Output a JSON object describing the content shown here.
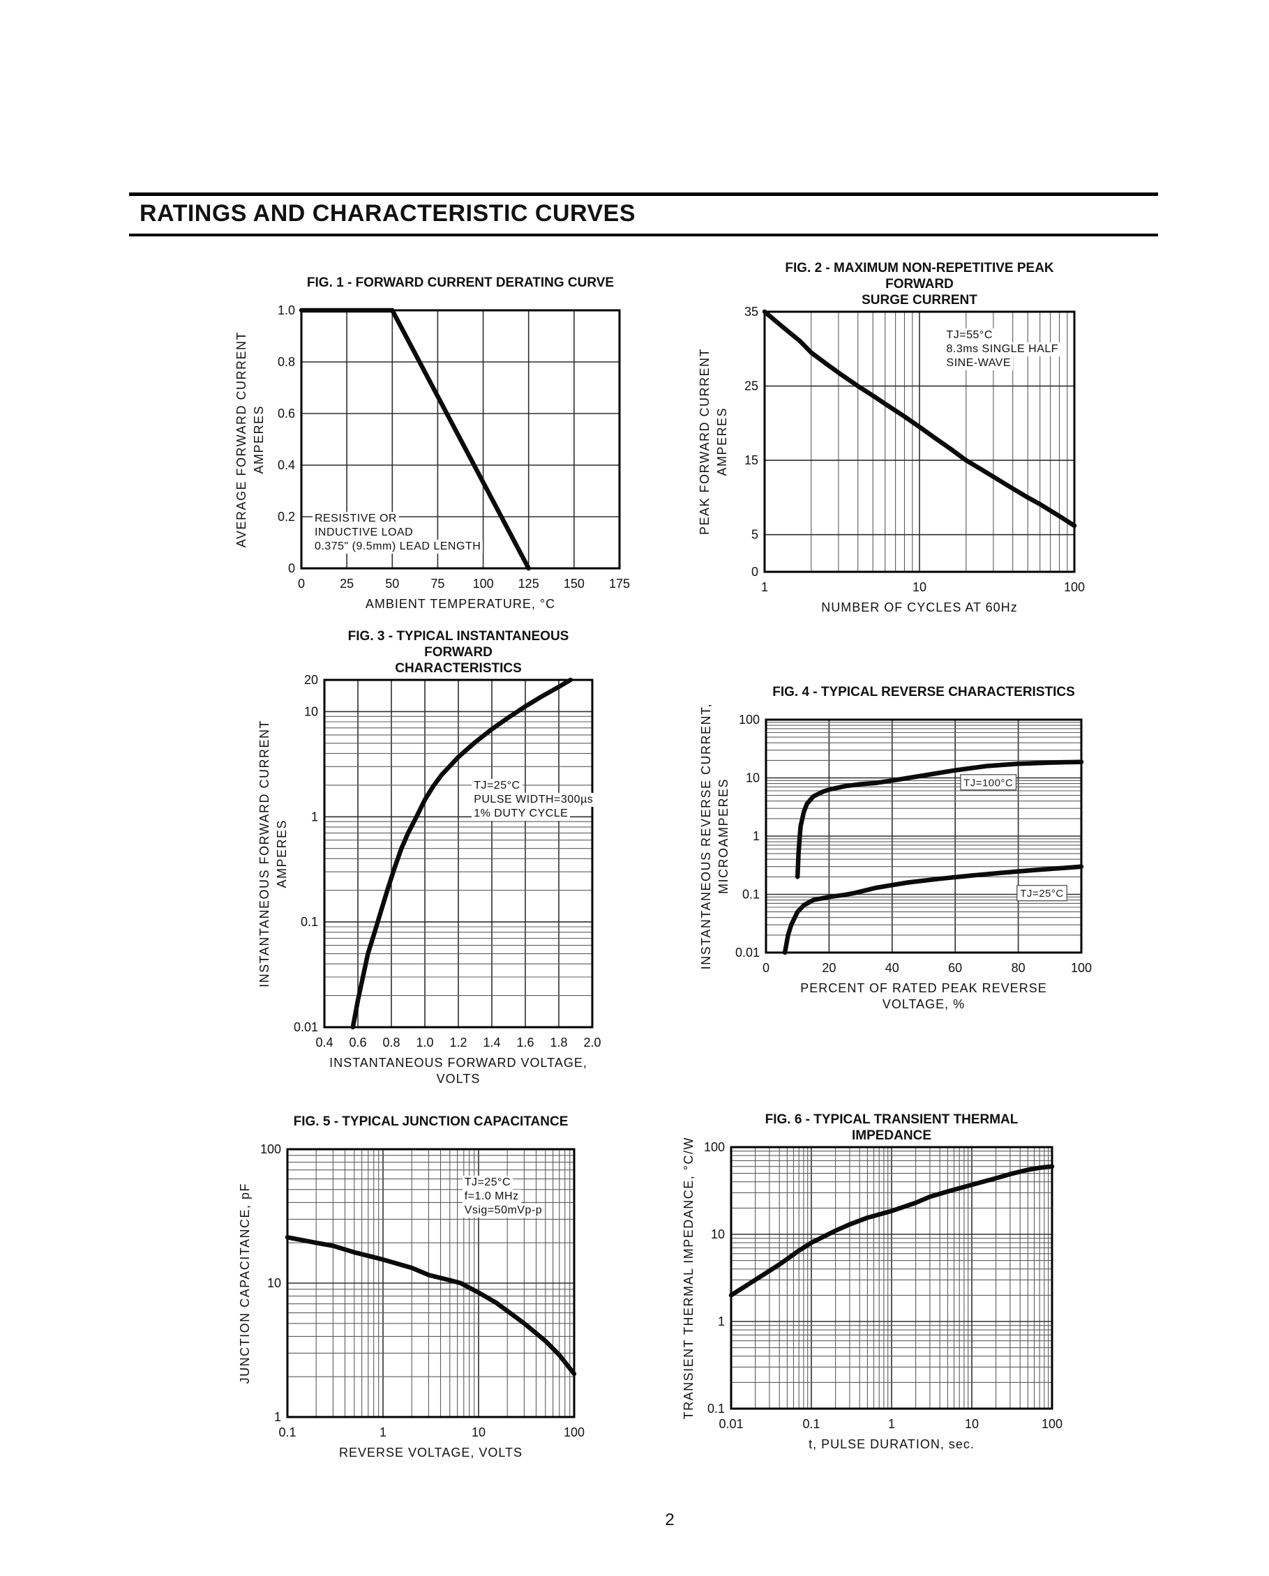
{
  "page": {
    "header_title": "RATINGS AND CHARACTERISTIC CURVES",
    "page_number": "2"
  },
  "chart_data": [
    {
      "id": "fig1",
      "type": "line",
      "title_lines": [
        "FIG. 1 - FORWARD CURRENT DERATING CURVE"
      ],
      "x": {
        "scale": "linear",
        "min": 0,
        "max": 175,
        "ticks": [
          {
            "v": 0,
            "t": "0"
          },
          {
            "v": 25,
            "t": "25"
          },
          {
            "v": 50,
            "t": "50"
          },
          {
            "v": 75,
            "t": "75"
          },
          {
            "v": 100,
            "t": "100"
          },
          {
            "v": 125,
            "t": "125"
          },
          {
            "v": 150,
            "t": "150"
          },
          {
            "v": 175,
            "t": "175"
          }
        ],
        "label_lines": [
          "AMBIENT TEMPERATURE, °C"
        ]
      },
      "y": {
        "scale": "linear",
        "min": 0,
        "max": 1.0,
        "ticks": [
          {
            "v": 0,
            "t": "0"
          },
          {
            "v": 0.2,
            "t": "0.2"
          },
          {
            "v": 0.4,
            "t": "0.4"
          },
          {
            "v": 0.6,
            "t": "0.6"
          },
          {
            "v": 0.8,
            "t": "0.8"
          },
          {
            "v": 1.0,
            "t": "1.0"
          }
        ],
        "label_lines": [
          "AVERAGE FORWARD CURRENT",
          "AMPERES"
        ]
      },
      "note": {
        "lines": [
          "RESISTIVE OR",
          "INDUCTIVE LOAD",
          "0.375\" (9.5mm) LEAD LENGTH"
        ],
        "pos": [
          0.035,
          0.78
        ]
      },
      "series": [
        {
          "name": "forward current derating",
          "points": [
            [
              0,
              1
            ],
            [
              50,
              1
            ],
            [
              125,
              0
            ]
          ]
        }
      ],
      "curve_labels": []
    },
    {
      "id": "fig2",
      "type": "line",
      "title_lines": [
        "FIG. 2 - MAXIMUM NON-REPETITIVE PEAK FORWARD",
        "SURGE CURRENT"
      ],
      "x": {
        "scale": "log",
        "min": 1,
        "max": 100,
        "ticks": [
          {
            "v": 1,
            "t": "1"
          },
          {
            "v": 10,
            "t": "10"
          },
          {
            "v": 100,
            "t": "100"
          }
        ],
        "label_lines": [
          "NUMBER OF CYCLES AT 60Hz"
        ]
      },
      "y": {
        "scale": "linear",
        "min": 0,
        "max": 35,
        "ticks": [
          {
            "v": 0,
            "t": "0"
          },
          {
            "v": 5,
            "t": "5"
          },
          {
            "v": 15,
            "t": "15"
          },
          {
            "v": 25,
            "t": "25"
          },
          {
            "v": 35,
            "t": "35"
          }
        ],
        "label_lines": [
          "PEAK FORWARD CURRENT",
          "AMPERES"
        ]
      },
      "note": {
        "lines": [
          "TJ=55°C",
          "8.3ms SINGLE HALF",
          "SINE-WAVE"
        ],
        "pos": [
          0.58,
          0.065
        ]
      },
      "series": [
        {
          "name": "peak forward surge current",
          "points": [
            [
              1,
              35
            ],
            [
              1.3,
              33
            ],
            [
              1.7,
              31
            ],
            [
              2,
              29.5
            ],
            [
              2.5,
              28
            ],
            [
              3,
              26.8
            ],
            [
              4,
              25
            ],
            [
              5,
              23.7
            ],
            [
              6,
              22.6
            ],
            [
              8,
              20.9
            ],
            [
              10,
              19.5
            ],
            [
              13,
              17.8
            ],
            [
              16,
              16.5
            ],
            [
              20,
              15
            ],
            [
              25,
              13.8
            ],
            [
              30,
              12.8
            ],
            [
              40,
              11.2
            ],
            [
              50,
              10
            ],
            [
              60,
              9.1
            ],
            [
              80,
              7.5
            ],
            [
              100,
              6.2
            ]
          ]
        }
      ],
      "curve_labels": []
    },
    {
      "id": "fig3",
      "type": "line",
      "title_lines": [
        "FIG. 3 - TYPICAL INSTANTANEOUS FORWARD",
        "CHARACTERISTICS"
      ],
      "x": {
        "scale": "linear",
        "min": 0.4,
        "max": 2.0,
        "ticks": [
          {
            "v": 0.4,
            "t": "0.4"
          },
          {
            "v": 0.6,
            "t": "0.6"
          },
          {
            "v": 0.8,
            "t": "0.8"
          },
          {
            "v": 1.0,
            "t": "1.0"
          },
          {
            "v": 1.2,
            "t": "1.2"
          },
          {
            "v": 1.4,
            "t": "1.4"
          },
          {
            "v": 1.6,
            "t": "1.6"
          },
          {
            "v": 1.8,
            "t": "1.8"
          },
          {
            "v": 2.0,
            "t": "2.0"
          }
        ],
        "label_lines": [
          "INSTANTANEOUS FORWARD VOLTAGE,",
          "VOLTS"
        ]
      },
      "y": {
        "scale": "log",
        "min": 0.01,
        "max": 20,
        "ticks": [
          {
            "v": 20,
            "t": "20"
          },
          {
            "v": 10,
            "t": "10"
          },
          {
            "v": 1,
            "t": "1"
          },
          {
            "v": 0.1,
            "t": "0.1"
          },
          {
            "v": 0.01,
            "t": "0.01"
          }
        ],
        "label_lines": [
          "INSTANTANEOUS FORWARD CURRENT",
          "AMPERES"
        ]
      },
      "note": {
        "lines": [
          "TJ=25°C",
          "PULSE WIDTH=300µs",
          "1% DUTY CYCLE"
        ],
        "pos": [
          0.55,
          0.285
        ]
      },
      "series": [
        {
          "name": "instantaneous forward characteristics",
          "points": [
            [
              0.57,
              0.01
            ],
            [
              0.6,
              0.018
            ],
            [
              0.63,
              0.03
            ],
            [
              0.66,
              0.05
            ],
            [
              0.7,
              0.08
            ],
            [
              0.74,
              0.13
            ],
            [
              0.78,
              0.21
            ],
            [
              0.82,
              0.33
            ],
            [
              0.86,
              0.5
            ],
            [
              0.9,
              0.7
            ],
            [
              0.95,
              1.0
            ],
            [
              1.0,
              1.45
            ],
            [
              1.05,
              1.95
            ],
            [
              1.1,
              2.5
            ],
            [
              1.2,
              3.7
            ],
            [
              1.3,
              5.1
            ],
            [
              1.4,
              6.8
            ],
            [
              1.5,
              8.8
            ],
            [
              1.6,
              11.2
            ],
            [
              1.7,
              14
            ],
            [
              1.8,
              17.2
            ],
            [
              1.87,
              20
            ]
          ]
        }
      ],
      "curve_labels": []
    },
    {
      "id": "fig4",
      "type": "line",
      "title_lines": [
        "FIG. 4 - TYPICAL REVERSE CHARACTERISTICS"
      ],
      "x": {
        "scale": "linear",
        "min": 0,
        "max": 100,
        "ticks": [
          {
            "v": 0,
            "t": "0"
          },
          {
            "v": 20,
            "t": "20"
          },
          {
            "v": 40,
            "t": "40"
          },
          {
            "v": 60,
            "t": "60"
          },
          {
            "v": 80,
            "t": "80"
          },
          {
            "v": 100,
            "t": "100"
          }
        ],
        "label_lines": [
          "PERCENT OF RATED PEAK REVERSE",
          "VOLTAGE, %"
        ]
      },
      "y": {
        "scale": "log",
        "min": 0.01,
        "max": 100,
        "ticks": [
          {
            "v": 100,
            "t": "100"
          },
          {
            "v": 10,
            "t": "10"
          },
          {
            "v": 1,
            "t": "1"
          },
          {
            "v": 0.1,
            "t": "0.1"
          },
          {
            "v": 0.01,
            "t": "0.01"
          }
        ],
        "label_lines": [
          "INSTANTANEOUS REVERSE CURRENT,",
          "MICROAMPERES"
        ]
      },
      "note": null,
      "series": [
        {
          "name": "TJ=100°C",
          "points": [
            [
              10,
              0.2
            ],
            [
              10.3,
              0.5
            ],
            [
              10.7,
              1
            ],
            [
              11,
              1.5
            ],
            [
              12,
              2.6
            ],
            [
              13,
              3.6
            ],
            [
              15,
              4.8
            ],
            [
              18,
              5.8
            ],
            [
              20,
              6.3
            ],
            [
              25,
              7.2
            ],
            [
              30,
              7.8
            ],
            [
              35,
              8.2
            ],
            [
              40,
              9
            ],
            [
              50,
              11
            ],
            [
              60,
              13.5
            ],
            [
              70,
              16
            ],
            [
              80,
              17.5
            ],
            [
              90,
              18.3
            ],
            [
              100,
              18.8
            ]
          ]
        },
        {
          "name": "TJ=25°C",
          "points": [
            [
              6,
              0.01
            ],
            [
              7,
              0.02
            ],
            [
              8,
              0.03
            ],
            [
              10,
              0.05
            ],
            [
              12,
              0.065
            ],
            [
              15,
              0.08
            ],
            [
              20,
              0.09
            ],
            [
              25,
              0.098
            ],
            [
              28,
              0.105
            ],
            [
              35,
              0.13
            ],
            [
              45,
              0.16
            ],
            [
              55,
              0.185
            ],
            [
              65,
              0.21
            ],
            [
              75,
              0.235
            ],
            [
              85,
              0.26
            ],
            [
              95,
              0.285
            ],
            [
              100,
              0.3
            ]
          ]
        }
      ],
      "curve_labels": [
        {
          "text": "TJ=100°C",
          "x": 70.5,
          "y": 8.4
        },
        {
          "text": "TJ=25°C",
          "x": 87.5,
          "y": 0.105
        }
      ]
    },
    {
      "id": "fig5",
      "type": "line",
      "title_lines": [
        "FIG. 5 - TYPICAL JUNCTION CAPACITANCE"
      ],
      "x": {
        "scale": "log",
        "min": 0.1,
        "max": 100,
        "ticks": [
          {
            "v": 0.1,
            "t": "0.1"
          },
          {
            "v": 1,
            "t": "1"
          },
          {
            "v": 10,
            "t": "10"
          },
          {
            "v": 100,
            "t": "100"
          }
        ],
        "label_lines": [
          "REVERSE VOLTAGE, VOLTS"
        ]
      },
      "y": {
        "scale": "log",
        "min": 1,
        "max": 100,
        "ticks": [
          {
            "v": 100,
            "t": "100"
          },
          {
            "v": 10,
            "t": "10"
          },
          {
            "v": 1,
            "t": "1"
          }
        ],
        "label_lines": [
          "JUNCTION CAPACITANCE, pF"
        ]
      },
      "note": {
        "lines": [
          "TJ=25°C",
          "f=1.0 MHz",
          "Vsig=50mVp-p"
        ],
        "pos": [
          0.61,
          0.1
        ]
      },
      "series": [
        {
          "name": "junction capacitance",
          "points": [
            [
              0.1,
              22
            ],
            [
              0.2,
              20
            ],
            [
              0.3,
              19
            ],
            [
              0.5,
              17
            ],
            [
              1,
              15
            ],
            [
              2,
              13
            ],
            [
              3,
              11.5
            ],
            [
              5,
              10.5
            ],
            [
              6.5,
              10
            ],
            [
              10,
              8.5
            ],
            [
              15,
              7.2
            ],
            [
              20,
              6.2
            ],
            [
              30,
              5
            ],
            [
              50,
              3.7
            ],
            [
              70,
              2.9
            ],
            [
              100,
              2.1
            ]
          ]
        }
      ],
      "curve_labels": []
    },
    {
      "id": "fig6",
      "type": "line",
      "title_lines": [
        "FIG. 6 - TYPICAL TRANSIENT THERMAL IMPEDANCE"
      ],
      "x": {
        "scale": "log",
        "min": 0.01,
        "max": 100,
        "ticks": [
          {
            "v": 0.01,
            "t": "0.01"
          },
          {
            "v": 0.1,
            "t": "0.1"
          },
          {
            "v": 1,
            "t": "1"
          },
          {
            "v": 10,
            "t": "10"
          },
          {
            "v": 100,
            "t": "100"
          }
        ],
        "label_lines": [
          "t, PULSE DURATION, sec."
        ]
      },
      "y": {
        "scale": "log",
        "min": 0.1,
        "max": 100,
        "ticks": [
          {
            "v": 100,
            "t": "100"
          },
          {
            "v": 10,
            "t": "10"
          },
          {
            "v": 1,
            "t": "1"
          },
          {
            "v": 0.1,
            "t": "0.1"
          }
        ],
        "label_lines": [
          "TRANSIENT THERMAL IMPEDANCE, °C/W"
        ]
      },
      "note": null,
      "series": [
        {
          "name": "transient thermal impedance",
          "points": [
            [
              0.01,
              2
            ],
            [
              0.02,
              3
            ],
            [
              0.04,
              4.5
            ],
            [
              0.07,
              6.5
            ],
            [
              0.1,
              8
            ],
            [
              0.2,
              11
            ],
            [
              0.3,
              13
            ],
            [
              0.5,
              15.5
            ],
            [
              1,
              18.5
            ],
            [
              2,
              23
            ],
            [
              3,
              27
            ],
            [
              5,
              31
            ],
            [
              10,
              37
            ],
            [
              20,
              44
            ],
            [
              30,
              49
            ],
            [
              50,
              55
            ],
            [
              70,
              58
            ],
            [
              100,
              60
            ]
          ]
        }
      ],
      "curve_labels": []
    }
  ]
}
